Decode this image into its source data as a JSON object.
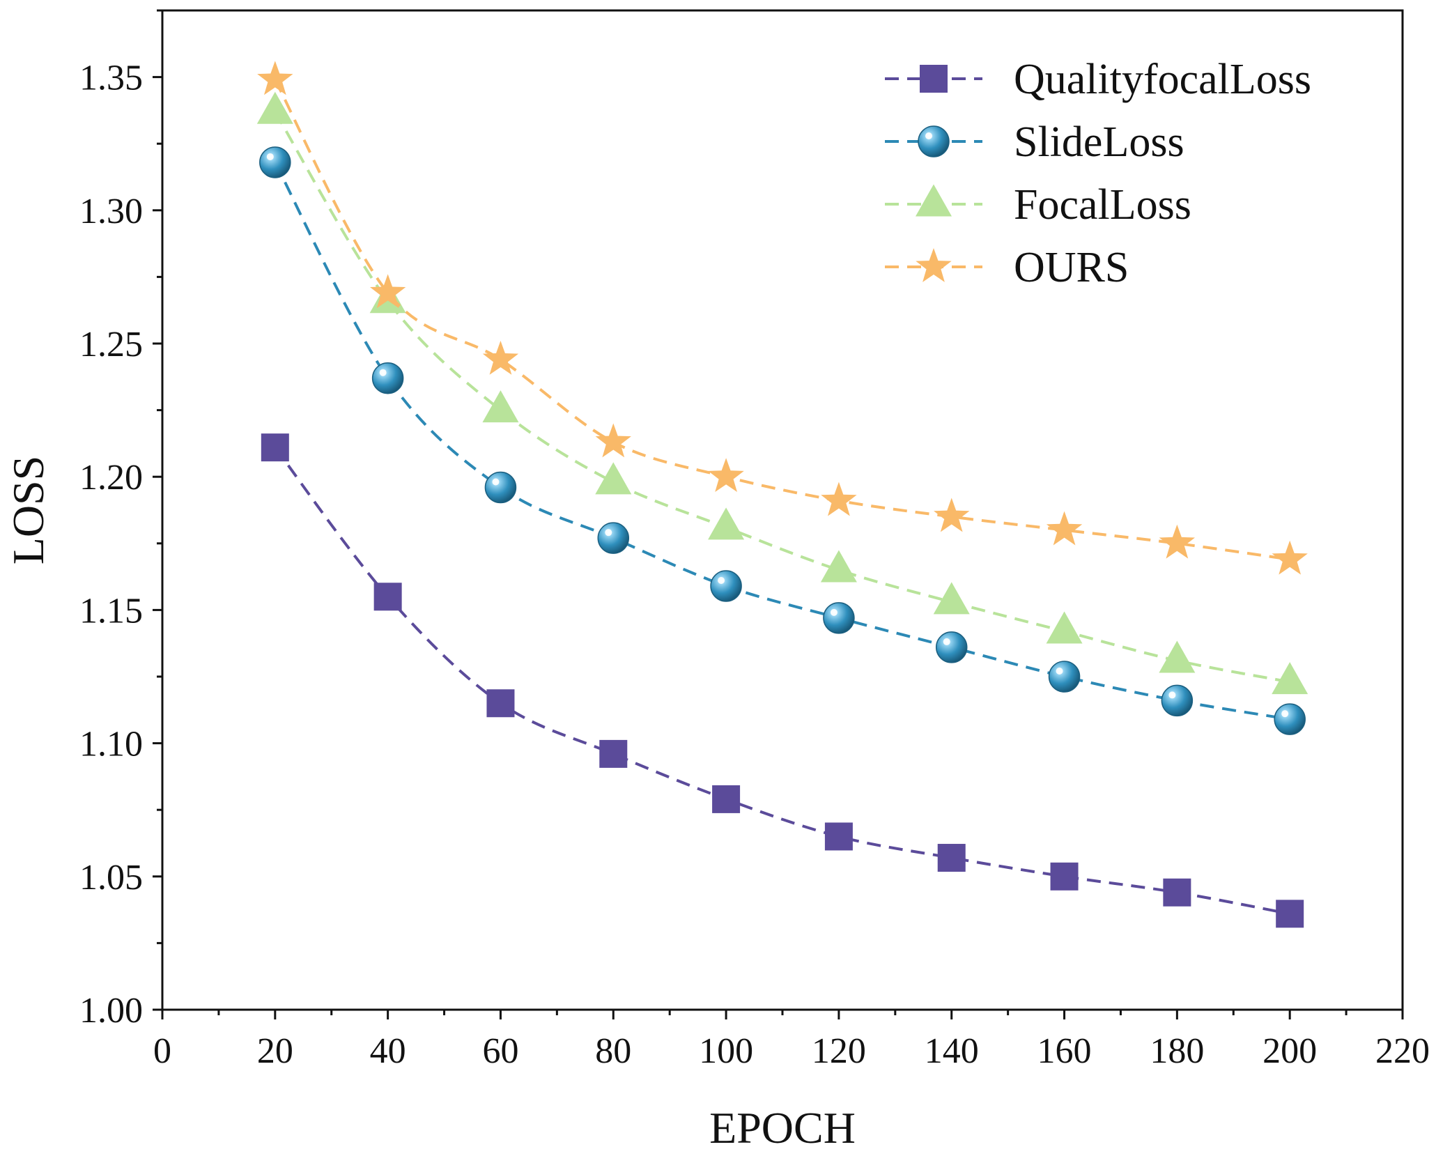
{
  "chart_data": {
    "type": "line",
    "title": "",
    "xlabel": "EPOCH",
    "ylabel": "LOSS",
    "xlim": [
      0,
      220
    ],
    "ylim": [
      1.0,
      1.375
    ],
    "x_ticks": [
      0,
      20,
      40,
      60,
      80,
      100,
      120,
      140,
      160,
      180,
      200,
      220
    ],
    "x_tick_labels": [
      "0",
      "20",
      "40",
      "60",
      "80",
      "100",
      "120",
      "140",
      "160",
      "180",
      "200",
      "220"
    ],
    "y_ticks": [
      1.0,
      1.05,
      1.1,
      1.15,
      1.2,
      1.25,
      1.3,
      1.35
    ],
    "y_tick_labels": [
      "1.00",
      "1.05",
      "1.10",
      "1.15",
      "1.20",
      "1.25",
      "1.30",
      "1.35"
    ],
    "grid": false,
    "legend_position": "top-right",
    "x": [
      20,
      40,
      60,
      80,
      100,
      120,
      140,
      160,
      180,
      200
    ],
    "series": [
      {
        "name": "QualityfocalLoss",
        "marker": "square",
        "color": "#5b4b9a",
        "values": [
          1.211,
          1.155,
          1.115,
          1.096,
          1.079,
          1.065,
          1.057,
          1.05,
          1.044,
          1.036
        ]
      },
      {
        "name": "SlideLoss",
        "marker": "sphere",
        "color": "#2c89b5",
        "values": [
          1.318,
          1.237,
          1.196,
          1.177,
          1.159,
          1.147,
          1.136,
          1.125,
          1.116,
          1.109
        ]
      },
      {
        "name": "FocalLoss",
        "marker": "triangle",
        "color": "#b8e39a",
        "values": [
          1.337,
          1.266,
          1.225,
          1.198,
          1.181,
          1.165,
          1.153,
          1.142,
          1.131,
          1.123
        ]
      },
      {
        "name": "OURS",
        "marker": "star",
        "color": "#f9b968",
        "values": [
          1.349,
          1.269,
          1.244,
          1.213,
          1.2,
          1.191,
          1.185,
          1.18,
          1.175,
          1.169
        ]
      }
    ]
  }
}
